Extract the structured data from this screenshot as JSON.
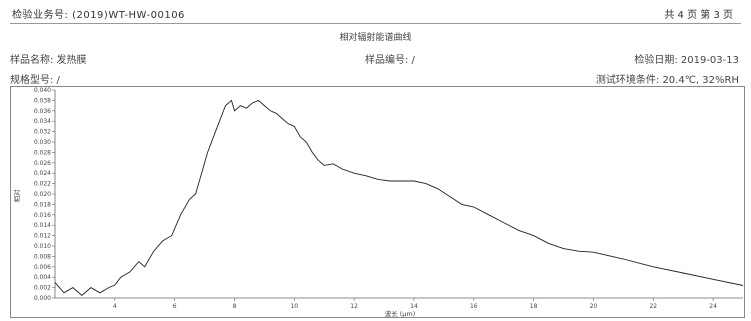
{
  "header": {
    "business_no_label": "检验业务号:",
    "business_no": "(2019)WT-HW-00106",
    "page_info": "共 4 页 第 3 页"
  },
  "meta": {
    "sample_name": "样品名称: 发热膜",
    "sample_no": "样品编号: /",
    "test_date": "检验日期: 2019-03-13",
    "model": "规格型号: /",
    "env": "测试环境条件: 20.4℃, 32%RH"
  },
  "chart_data": {
    "type": "line",
    "title": "相对辐射能谱曲线",
    "xlabel": "波长 (μm)",
    "ylabel": "相对",
    "xlim": [
      2,
      25
    ],
    "ylim": [
      0,
      0.04
    ],
    "xticks": [
      "4",
      "6",
      "8",
      "10",
      "12",
      "14",
      "16",
      "18",
      "20",
      "22",
      "24"
    ],
    "yticks": [
      "0.000",
      "0.002",
      "0.004",
      "0.006",
      "0.008",
      "0.010",
      "0.012",
      "0.014",
      "0.016",
      "0.018",
      "0.020",
      "0.022",
      "0.024",
      "0.026",
      "0.028",
      "0.030",
      "0.032",
      "0.034",
      "0.036",
      "0.038",
      "0.040"
    ],
    "x": [
      2.0,
      2.3,
      2.6,
      2.9,
      3.2,
      3.5,
      3.8,
      4.0,
      4.2,
      4.5,
      4.8,
      5.0,
      5.3,
      5.6,
      5.9,
      6.2,
      6.5,
      6.7,
      6.9,
      7.1,
      7.3,
      7.5,
      7.7,
      7.9,
      8.0,
      8.2,
      8.4,
      8.6,
      8.8,
      9.0,
      9.2,
      9.4,
      9.6,
      9.8,
      10.0,
      10.2,
      10.4,
      10.6,
      10.8,
      11.0,
      11.3,
      11.6,
      12.0,
      12.4,
      12.8,
      13.2,
      13.6,
      14.0,
      14.4,
      14.8,
      15.2,
      15.6,
      16.0,
      16.5,
      17.0,
      17.5,
      18.0,
      18.5,
      19.0,
      19.5,
      20.0,
      21.0,
      22.0,
      23.0,
      24.0,
      25.0
    ],
    "y": [
      0.003,
      0.001,
      0.002,
      0.0005,
      0.002,
      0.001,
      0.002,
      0.0025,
      0.004,
      0.005,
      0.007,
      0.006,
      0.009,
      0.011,
      0.012,
      0.016,
      0.019,
      0.02,
      0.024,
      0.028,
      0.031,
      0.034,
      0.037,
      0.038,
      0.036,
      0.037,
      0.0365,
      0.0375,
      0.038,
      0.037,
      0.036,
      0.0355,
      0.0345,
      0.0335,
      0.033,
      0.031,
      0.03,
      0.028,
      0.0265,
      0.0255,
      0.0258,
      0.0248,
      0.024,
      0.0235,
      0.0228,
      0.0225,
      0.0225,
      0.0225,
      0.022,
      0.021,
      0.0195,
      0.018,
      0.0175,
      0.016,
      0.0145,
      0.013,
      0.012,
      0.0105,
      0.0095,
      0.009,
      0.0088,
      0.0075,
      0.006,
      0.0048,
      0.0036,
      0.0024
    ]
  }
}
